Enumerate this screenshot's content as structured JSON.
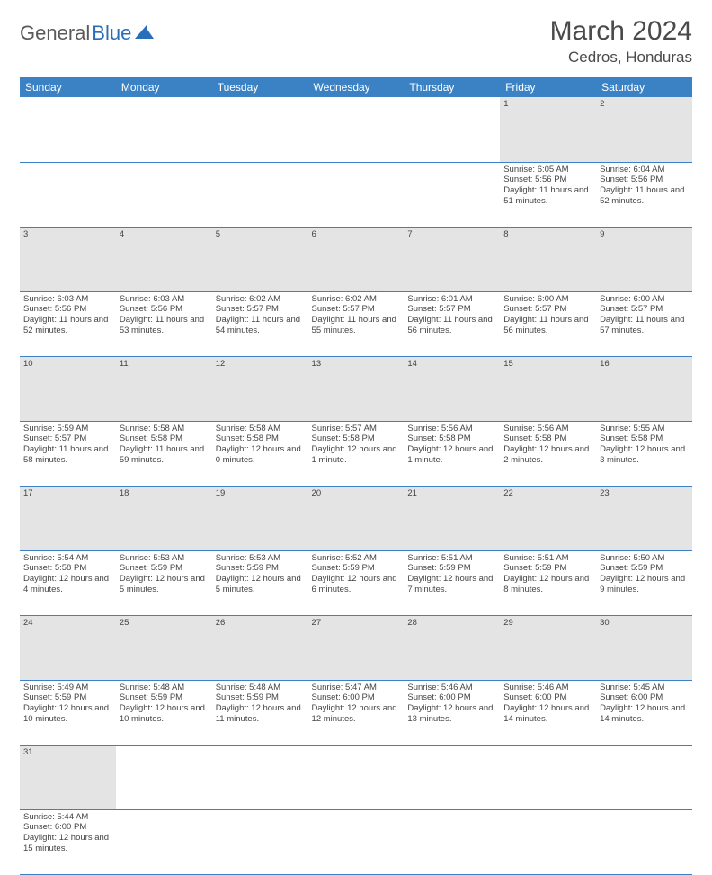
{
  "logo": {
    "part1": "General",
    "part2": "Blue"
  },
  "title": "March 2024",
  "location": "Cedros, Honduras",
  "colors": {
    "header_bg": "#3b82c4",
    "header_text": "#ffffff",
    "daynum_bg": "#e4e4e4",
    "cell_border": "#3b82c4",
    "logo_gray": "#5a5a5a",
    "logo_blue": "#2a6db8"
  },
  "weekdays": [
    "Sunday",
    "Monday",
    "Tuesday",
    "Wednesday",
    "Thursday",
    "Friday",
    "Saturday"
  ],
  "weeks": [
    {
      "nums": [
        "",
        "",
        "",
        "",
        "",
        "1",
        "2"
      ],
      "cells": [
        null,
        null,
        null,
        null,
        null,
        {
          "sunrise": "6:05 AM",
          "sunset": "5:56 PM",
          "daylight": "11 hours and 51 minutes."
        },
        {
          "sunrise": "6:04 AM",
          "sunset": "5:56 PM",
          "daylight": "11 hours and 52 minutes."
        }
      ]
    },
    {
      "nums": [
        "3",
        "4",
        "5",
        "6",
        "7",
        "8",
        "9"
      ],
      "cells": [
        {
          "sunrise": "6:03 AM",
          "sunset": "5:56 PM",
          "daylight": "11 hours and 52 minutes."
        },
        {
          "sunrise": "6:03 AM",
          "sunset": "5:56 PM",
          "daylight": "11 hours and 53 minutes."
        },
        {
          "sunrise": "6:02 AM",
          "sunset": "5:57 PM",
          "daylight": "11 hours and 54 minutes."
        },
        {
          "sunrise": "6:02 AM",
          "sunset": "5:57 PM",
          "daylight": "11 hours and 55 minutes."
        },
        {
          "sunrise": "6:01 AM",
          "sunset": "5:57 PM",
          "daylight": "11 hours and 56 minutes."
        },
        {
          "sunrise": "6:00 AM",
          "sunset": "5:57 PM",
          "daylight": "11 hours and 56 minutes."
        },
        {
          "sunrise": "6:00 AM",
          "sunset": "5:57 PM",
          "daylight": "11 hours and 57 minutes."
        }
      ]
    },
    {
      "nums": [
        "10",
        "11",
        "12",
        "13",
        "14",
        "15",
        "16"
      ],
      "cells": [
        {
          "sunrise": "5:59 AM",
          "sunset": "5:57 PM",
          "daylight": "11 hours and 58 minutes."
        },
        {
          "sunrise": "5:58 AM",
          "sunset": "5:58 PM",
          "daylight": "11 hours and 59 minutes."
        },
        {
          "sunrise": "5:58 AM",
          "sunset": "5:58 PM",
          "daylight": "12 hours and 0 minutes."
        },
        {
          "sunrise": "5:57 AM",
          "sunset": "5:58 PM",
          "daylight": "12 hours and 1 minute."
        },
        {
          "sunrise": "5:56 AM",
          "sunset": "5:58 PM",
          "daylight": "12 hours and 1 minute."
        },
        {
          "sunrise": "5:56 AM",
          "sunset": "5:58 PM",
          "daylight": "12 hours and 2 minutes."
        },
        {
          "sunrise": "5:55 AM",
          "sunset": "5:58 PM",
          "daylight": "12 hours and 3 minutes."
        }
      ]
    },
    {
      "nums": [
        "17",
        "18",
        "19",
        "20",
        "21",
        "22",
        "23"
      ],
      "cells": [
        {
          "sunrise": "5:54 AM",
          "sunset": "5:58 PM",
          "daylight": "12 hours and 4 minutes."
        },
        {
          "sunrise": "5:53 AM",
          "sunset": "5:59 PM",
          "daylight": "12 hours and 5 minutes."
        },
        {
          "sunrise": "5:53 AM",
          "sunset": "5:59 PM",
          "daylight": "12 hours and 5 minutes."
        },
        {
          "sunrise": "5:52 AM",
          "sunset": "5:59 PM",
          "daylight": "12 hours and 6 minutes."
        },
        {
          "sunrise": "5:51 AM",
          "sunset": "5:59 PM",
          "daylight": "12 hours and 7 minutes."
        },
        {
          "sunrise": "5:51 AM",
          "sunset": "5:59 PM",
          "daylight": "12 hours and 8 minutes."
        },
        {
          "sunrise": "5:50 AM",
          "sunset": "5:59 PM",
          "daylight": "12 hours and 9 minutes."
        }
      ]
    },
    {
      "nums": [
        "24",
        "25",
        "26",
        "27",
        "28",
        "29",
        "30"
      ],
      "cells": [
        {
          "sunrise": "5:49 AM",
          "sunset": "5:59 PM",
          "daylight": "12 hours and 10 minutes."
        },
        {
          "sunrise": "5:48 AM",
          "sunset": "5:59 PM",
          "daylight": "12 hours and 10 minutes."
        },
        {
          "sunrise": "5:48 AM",
          "sunset": "5:59 PM",
          "daylight": "12 hours and 11 minutes."
        },
        {
          "sunrise": "5:47 AM",
          "sunset": "6:00 PM",
          "daylight": "12 hours and 12 minutes."
        },
        {
          "sunrise": "5:46 AM",
          "sunset": "6:00 PM",
          "daylight": "12 hours and 13 minutes."
        },
        {
          "sunrise": "5:46 AM",
          "sunset": "6:00 PM",
          "daylight": "12 hours and 14 minutes."
        },
        {
          "sunrise": "5:45 AM",
          "sunset": "6:00 PM",
          "daylight": "12 hours and 14 minutes."
        }
      ]
    },
    {
      "nums": [
        "31",
        "",
        "",
        "",
        "",
        "",
        ""
      ],
      "cells": [
        {
          "sunrise": "5:44 AM",
          "sunset": "6:00 PM",
          "daylight": "12 hours and 15 minutes."
        },
        null,
        null,
        null,
        null,
        null,
        null
      ]
    }
  ],
  "labels": {
    "sunrise": "Sunrise: ",
    "sunset": "Sunset: ",
    "daylight": "Daylight: "
  }
}
